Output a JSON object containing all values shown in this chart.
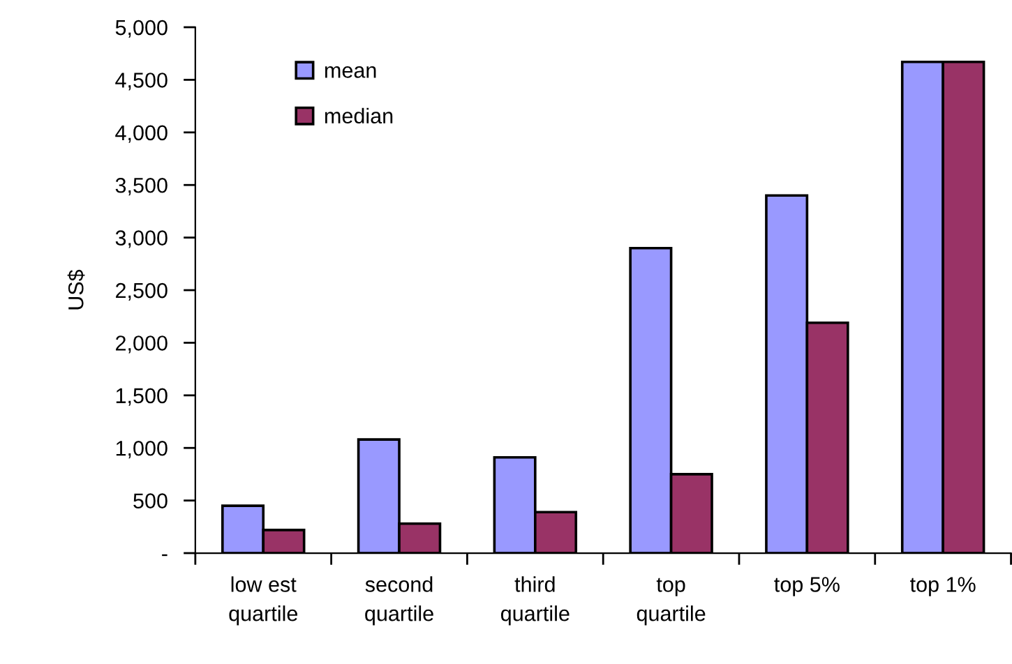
{
  "chart_data": {
    "type": "bar",
    "ylabel": "US$",
    "categories": [
      "low est\nquartile",
      "second\nquartile",
      "third\nquartile",
      "top\nquartile",
      "top 5%",
      "top 1%"
    ],
    "series": [
      {
        "name": "mean",
        "color": "#9999ff",
        "values": [
          450,
          1080,
          910,
          2900,
          3400,
          4670
        ]
      },
      {
        "name": "median",
        "color": "#993366",
        "values": [
          220,
          280,
          390,
          750,
          2190,
          4670
        ]
      }
    ],
    "ylim": [
      0,
      5000
    ],
    "yticks": [
      {
        "value": 0,
        "label": "-"
      },
      500,
      {
        "value": 1000,
        "label": "1,000"
      },
      {
        "value": 1500,
        "label": "1,500"
      },
      {
        "value": 2000,
        "label": "2,000"
      },
      {
        "value": 2500,
        "label": "2,500"
      },
      {
        "value": 3000,
        "label": "3,000"
      },
      {
        "value": 3500,
        "label": "3,500"
      },
      {
        "value": 4000,
        "label": "4,000"
      },
      {
        "value": 4500,
        "label": "4,500"
      },
      {
        "value": 5000,
        "label": "5,000"
      }
    ],
    "grid": false,
    "legend": "top left"
  }
}
